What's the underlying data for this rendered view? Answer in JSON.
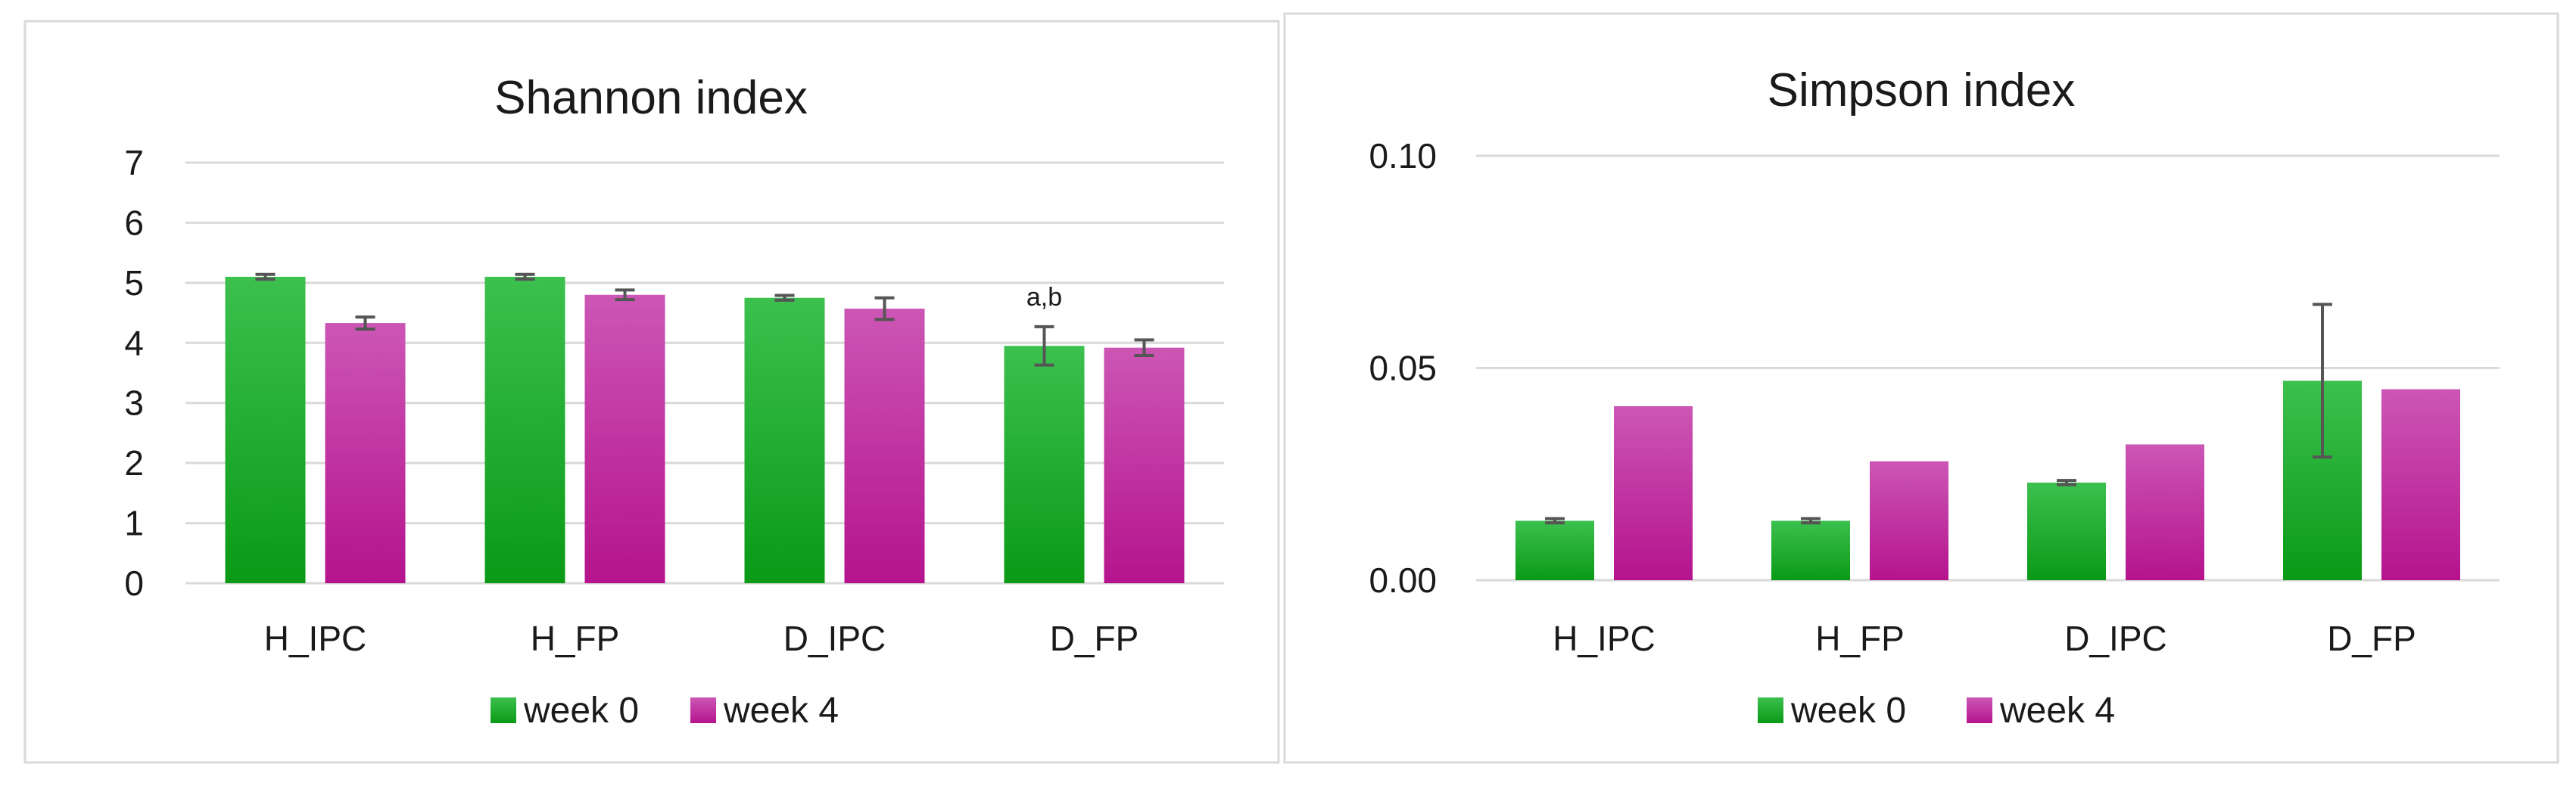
{
  "colors": {
    "week0_top": "#3cc04e",
    "week0_bottom": "#0a9a16",
    "week4_top": "#cc56b5",
    "week4_bottom": "#b5138d"
  },
  "chart_data": [
    {
      "type": "bar",
      "title": "Shannon index",
      "categories": [
        "H_IPC",
        "H_FP",
        "D_IPC",
        "D_FP"
      ],
      "ylim": [
        0,
        7
      ],
      "yticks": [
        "0",
        "1",
        "2",
        "3",
        "4",
        "5",
        "6",
        "7"
      ],
      "grid": true,
      "legend": "bottom",
      "series": [
        {
          "name": "week 0",
          "values": [
            5.1,
            5.1,
            4.75,
            3.95
          ],
          "errors": [
            0.04,
            0.04,
            0.04,
            0.32
          ]
        },
        {
          "name": "week 4",
          "values": [
            4.33,
            4.8,
            4.57,
            3.92
          ],
          "errors": [
            0.1,
            0.08,
            0.18,
            0.13
          ]
        }
      ],
      "annotations": [
        {
          "category": "D_FP",
          "series": "week 0",
          "text": "a,b"
        }
      ]
    },
    {
      "type": "bar",
      "title": "Simpson index",
      "categories": [
        "H_IPC",
        "H_FP",
        "D_IPC",
        "D_FP"
      ],
      "ylim": [
        0,
        0.1
      ],
      "yticks": [
        "0.00",
        "0.05",
        "0.10"
      ],
      "grid": true,
      "legend": "bottom",
      "series": [
        {
          "name": "week 0",
          "values": [
            0.014,
            0.014,
            0.023,
            0.047
          ],
          "errors": [
            0.0005,
            0.0005,
            0.0005,
            0.018
          ]
        },
        {
          "name": "week 4",
          "values": [
            0.041,
            0.028,
            0.032,
            0.045
          ],
          "errors": [
            0,
            0,
            0,
            0
          ]
        }
      ],
      "annotations": []
    }
  ]
}
